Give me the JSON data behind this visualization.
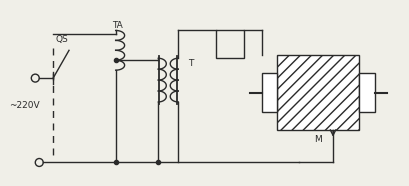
{
  "bg_color": "#f0efe8",
  "line_color": "#2a2a2a",
  "fig_width": 4.1,
  "fig_height": 1.86,
  "dpi": 100,
  "label_QS": "QS",
  "label_TA": "TA",
  "label_T": "T",
  "label_M": "M",
  "label_V": "~220V"
}
